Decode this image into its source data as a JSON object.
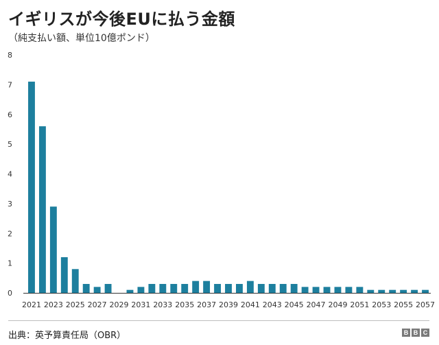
{
  "title": "イギリスが今後EUに払う金額",
  "subtitle": "（純支払い額、単位10億ポンド）",
  "source": "出典：英予算責任局（OBR）",
  "logo": {
    "letters": [
      "B",
      "B",
      "C"
    ],
    "color": "#7a7a7a"
  },
  "chart_data": {
    "type": "bar",
    "title": "イギリスが今後EUに払う金額",
    "subtitle": "（純支払い額、単位10億ポンド）",
    "xlabel": "",
    "ylabel": "",
    "ylim": [
      0,
      8
    ],
    "yticks": [
      0,
      1,
      2,
      3,
      4,
      5,
      6,
      7,
      8
    ],
    "grid": false,
    "legend": "none",
    "bar_color": "#1d7f9e",
    "categories": [
      2021,
      2022,
      2023,
      2024,
      2025,
      2026,
      2027,
      2028,
      2029,
      2030,
      2031,
      2032,
      2033,
      2034,
      2035,
      2036,
      2037,
      2038,
      2039,
      2040,
      2041,
      2042,
      2043,
      2044,
      2045,
      2046,
      2047,
      2048,
      2049,
      2050,
      2051,
      2052,
      2053,
      2054,
      2055,
      2056,
      2057
    ],
    "x_tick_labels": [
      2021,
      2023,
      2025,
      2027,
      2029,
      2031,
      2033,
      2035,
      2037,
      2039,
      2041,
      2043,
      2045,
      2047,
      2049,
      2051,
      2053,
      2055,
      2057
    ],
    "values": [
      7.1,
      5.6,
      2.9,
      1.2,
      0.8,
      0.3,
      0.2,
      0.3,
      0.0,
      0.1,
      0.2,
      0.3,
      0.3,
      0.3,
      0.3,
      0.4,
      0.4,
      0.3,
      0.3,
      0.3,
      0.4,
      0.3,
      0.3,
      0.3,
      0.3,
      0.2,
      0.2,
      0.2,
      0.2,
      0.2,
      0.2,
      0.1,
      0.1,
      0.1,
      0.1,
      0.1,
      0.1
    ]
  }
}
